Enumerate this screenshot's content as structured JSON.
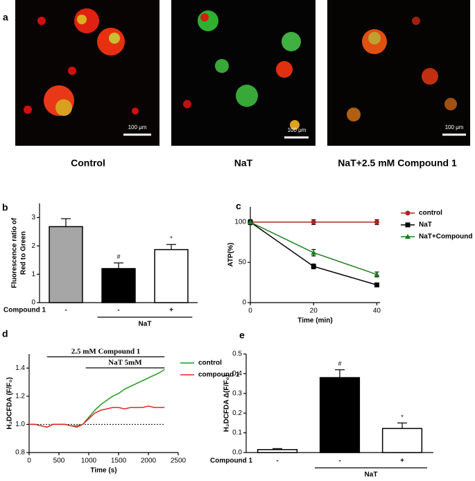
{
  "panel_a": {
    "label": "a",
    "images": [
      {
        "caption": "Control",
        "scale": "100 μm"
      },
      {
        "caption": "NaT",
        "scale": "100 μm"
      },
      {
        "caption": "NaT+2.5 mM Compound 1",
        "scale": "100 μm"
      }
    ]
  },
  "chart_data": [
    {
      "type": "bar",
      "panel": "b",
      "ylabel": [
        "Fluorescence ratio of",
        "Red to Green"
      ],
      "categories": [
        "-",
        "-",
        "+"
      ],
      "values": [
        2.68,
        1.2,
        1.87
      ],
      "errors": [
        0.28,
        0.2,
        0.18
      ],
      "colors": [
        "#a6a6a6",
        "#000000",
        "#ffffff"
      ],
      "marks": [
        null,
        "#",
        "*"
      ],
      "row_label": "Compound 1",
      "group_label": "NaT",
      "ylim": [
        0,
        3.5
      ],
      "yticks": [
        0,
        1,
        2,
        3
      ]
    },
    {
      "type": "line",
      "panel": "c",
      "xlabel": "Time (min)",
      "ylabel": "ATP(%)",
      "x": [
        0,
        20,
        40
      ],
      "series": [
        {
          "name": "control",
          "color": "#b22222",
          "marker": "circle",
          "values": [
            100,
            100,
            100
          ],
          "errors": [
            3,
            3,
            3
          ]
        },
        {
          "name": "NaT",
          "color": "#000000",
          "marker": "square",
          "values": [
            100,
            45,
            22
          ],
          "errors": [
            3,
            3,
            2
          ]
        },
        {
          "name": "NaT+Compound",
          "color": "#1e7b1e",
          "marker": "triangle",
          "values": [
            100,
            62,
            35
          ],
          "errors": [
            3,
            4,
            3
          ]
        }
      ],
      "xlim": [
        0,
        41
      ],
      "xticks": [
        0,
        20,
        40
      ],
      "ylim": [
        0,
        119
      ],
      "yticks": [
        0,
        50,
        100
      ]
    },
    {
      "type": "line",
      "panel": "d",
      "xlabel": "Time (s)",
      "ylabel": "H₂DCFDA (F/F₀)",
      "x": [
        0,
        100,
        200,
        300,
        400,
        500,
        600,
        700,
        800,
        900,
        1000,
        1100,
        1200,
        1300,
        1400,
        1500,
        1600,
        1700,
        1800,
        1900,
        2000,
        2100,
        2200,
        2270
      ],
      "series": [
        {
          "name": "control",
          "color": "#1a9a1a",
          "values": [
            1.0,
            1.0,
            0.99,
            0.98,
            1.0,
            1.0,
            1.0,
            0.99,
            0.99,
            1.0,
            1.05,
            1.1,
            1.14,
            1.17,
            1.2,
            1.22,
            1.25,
            1.27,
            1.29,
            1.31,
            1.33,
            1.35,
            1.37,
            1.39
          ]
        },
        {
          "name": "compound 1",
          "color": "#e0262b",
          "values": [
            1.0,
            1.0,
            0.99,
            0.98,
            1.0,
            1.0,
            1.0,
            0.99,
            0.98,
            1.0,
            1.04,
            1.08,
            1.1,
            1.11,
            1.12,
            1.12,
            1.11,
            1.12,
            1.12,
            1.12,
            1.13,
            1.12,
            1.12,
            1.12
          ]
        }
      ],
      "reference_y": 1,
      "bars": [
        {
          "label": "2.5 mM Compound 1",
          "x": [
            300,
            2270
          ]
        },
        {
          "label": "NaT 5mM",
          "x": [
            950,
            2270
          ]
        }
      ],
      "xlim": [
        0,
        2500
      ],
      "xticks": [
        0,
        500,
        1000,
        1500,
        2000,
        2500
      ],
      "ylim": [
        0.8,
        1.5
      ],
      "yticks": [
        {
          "value": 0.8,
          "label": "0.8"
        },
        {
          "value": 1,
          "label": "1.0"
        },
        1.2,
        1.4
      ]
    },
    {
      "type": "bar",
      "panel": "e",
      "ylabel": [
        "H₂DCFDA Δ(F/F₀)"
      ],
      "categories": [
        "-",
        "-",
        "+"
      ],
      "values": [
        0.015,
        0.38,
        0.122
      ],
      "errors": [
        0.005,
        0.04,
        0.028
      ],
      "colors": [
        "#ffffff",
        "#000000",
        "#ffffff"
      ],
      "marks": [
        null,
        "#",
        "*"
      ],
      "row_label": "Compound 1",
      "group_label": "NaT",
      "ylim": [
        0,
        0.5
      ],
      "yticks": [
        {
          "value": 0,
          "label": "0.0"
        },
        0.1,
        0.2,
        0.3,
        0.4,
        0.5
      ]
    }
  ]
}
